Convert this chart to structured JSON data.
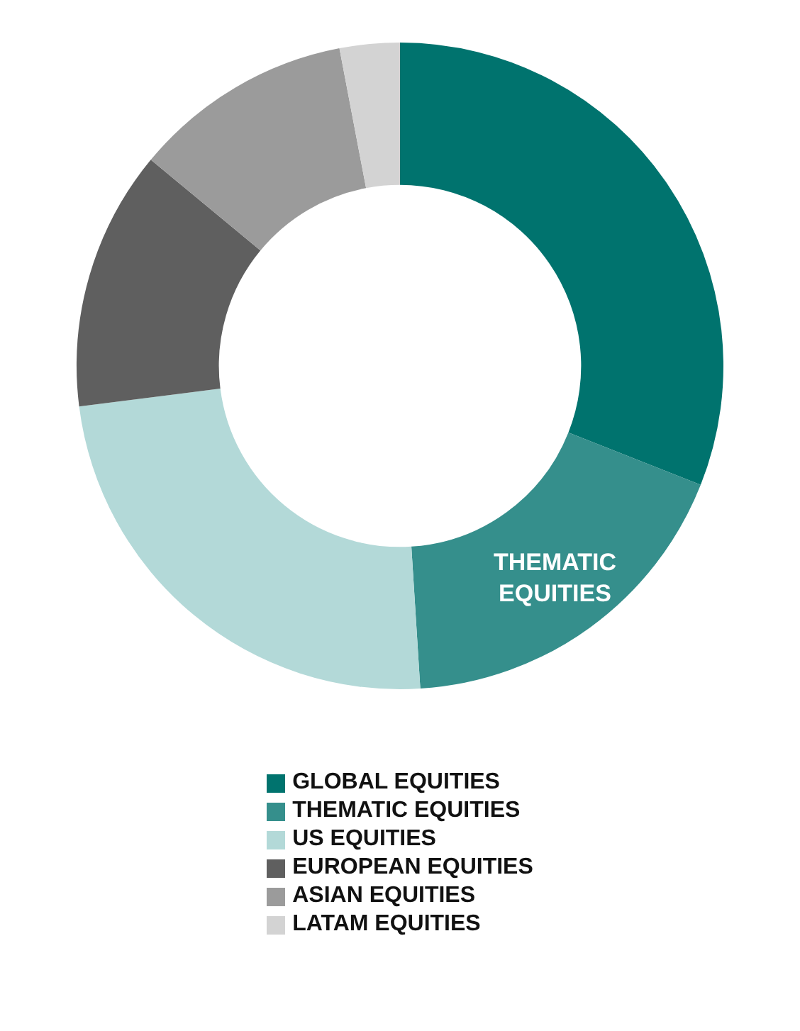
{
  "chart_data": {
    "type": "donut",
    "categories": [
      "GLOBAL EQUITIES",
      "THEMATIC EQUITIES",
      "US EQUITIES",
      "EUROPEAN EQUITIES",
      "ASIAN EQUITIES",
      "LATAM EQUITIES"
    ],
    "values": [
      31,
      18,
      24,
      13,
      11,
      3
    ],
    "colors": [
      "#00736e",
      "#358f8c",
      "#b3d9d8",
      "#5f5f5f",
      "#9b9b9b",
      "#d3d3d3"
    ],
    "legend": "bottom",
    "annotations": [
      {
        "text": "THEMATIC EQUITIES",
        "x": "THEMATIC EQUITIES"
      }
    ]
  }
}
